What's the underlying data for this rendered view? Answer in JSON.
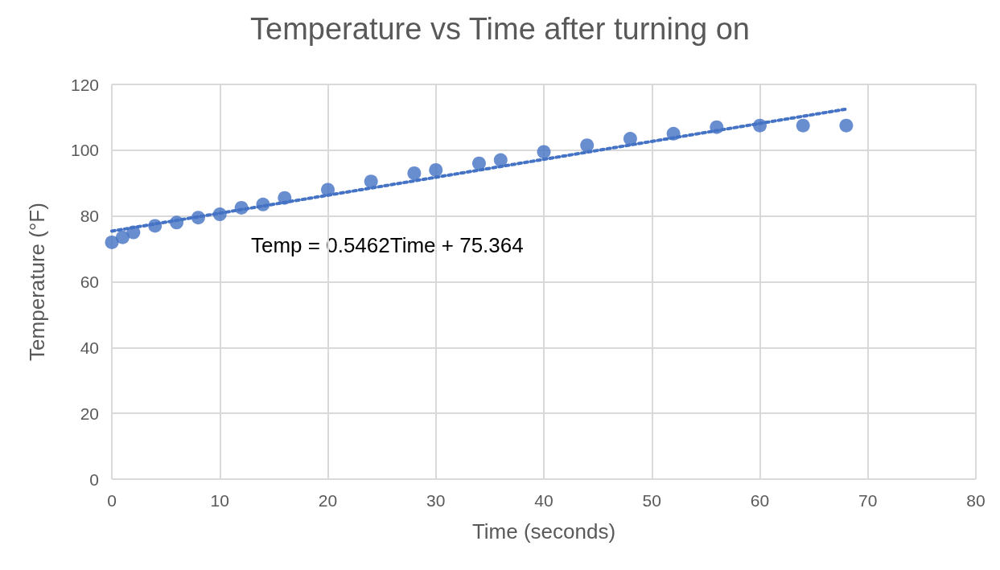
{
  "chart_data": {
    "type": "scatter",
    "title": "Temperature vs Time after turning on",
    "xlabel": "Time (seconds)",
    "ylabel": "Temperature (°F)",
    "x": [
      0,
      1,
      2,
      4,
      6,
      8,
      10,
      12,
      14,
      16,
      20,
      24,
      28,
      30,
      34,
      36,
      40,
      44,
      48,
      52,
      56,
      60,
      64,
      68
    ],
    "series": [
      {
        "color": "#4472c4",
        "marker": "circle",
        "values": [
          72,
          73.5,
          75,
          77,
          78,
          79.5,
          80.5,
          82.5,
          83.5,
          85.5,
          88,
          90.5,
          93,
          94,
          96,
          97,
          99.5,
          101.5,
          103.5,
          105,
          107,
          107.5,
          107.5,
          107.5
        ]
      },
      {
        "type": "line",
        "color": "#4472c4",
        "line_style": "dotted",
        "marker": "none",
        "x": [
          0,
          68
        ],
        "values": [
          75.4,
          112.5
        ]
      }
    ],
    "annotations": [
      "Temp = 0.5462Time + 75.364"
    ],
    "xlim": [
      0,
      80
    ],
    "xticks": [
      0,
      10,
      20,
      30,
      40,
      50,
      60,
      70,
      80
    ],
    "ylim": [
      0,
      120
    ],
    "yticks": [
      0,
      20,
      40,
      60,
      80,
      100,
      120
    ],
    "grid": true
  }
}
